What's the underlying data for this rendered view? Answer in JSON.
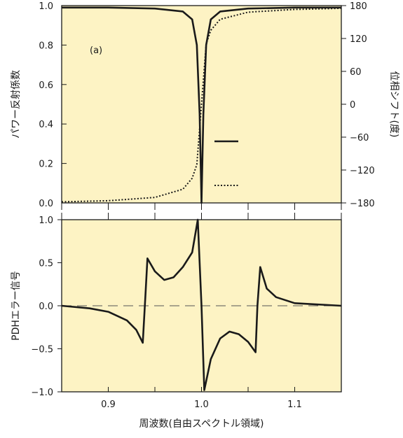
{
  "colors": {
    "panel_bg": "#fdf3c4",
    "line": "#1a1a1a",
    "zero_line": "#555555"
  },
  "chart_data": [
    {
      "type": "line",
      "panel": "top",
      "annotation": "(a)",
      "ylabel": "パワー反射係数",
      "ylabel_right": "位相シフト(度)",
      "xlim": [
        0.85,
        1.15
      ],
      "ylim": [
        0,
        1.0
      ],
      "ylim_right": [
        -180,
        180
      ],
      "yticks": [
        0.0,
        0.2,
        0.4,
        0.6,
        0.8,
        1.0
      ],
      "ytick_labels": [
        "0.0",
        "0.2",
        "0.4",
        "0.6",
        "0.8",
        "1.0"
      ],
      "yticks_right": [
        -180,
        -120,
        -60,
        0,
        60,
        120,
        180
      ],
      "ytick_labels_right": [
        "−180",
        "−120",
        "−60",
        "0",
        "60",
        "120",
        "180"
      ],
      "legend": [
        {
          "style": "solid",
          "label": ""
        },
        {
          "style": "dotted",
          "label": ""
        }
      ],
      "series": [
        {
          "style": "solid",
          "axis": "left",
          "x": [
            0.85,
            0.9,
            0.95,
            0.98,
            0.99,
            0.995,
            0.998,
            1.0,
            1.002,
            1.005,
            1.01,
            1.02,
            1.05,
            1.1,
            1.15
          ],
          "values": [
            0.99,
            0.99,
            0.985,
            0.97,
            0.93,
            0.8,
            0.45,
            0.0,
            0.45,
            0.8,
            0.93,
            0.97,
            0.985,
            0.99,
            0.99
          ]
        },
        {
          "style": "dotted",
          "axis": "right",
          "x": [
            0.85,
            0.9,
            0.95,
            0.98,
            0.99,
            0.995,
            1.0,
            1.005,
            1.01,
            1.02,
            1.05,
            1.1,
            1.15
          ],
          "values": [
            -178,
            -176,
            -170,
            -155,
            -135,
            -110,
            0,
            110,
            135,
            155,
            168,
            173,
            175
          ]
        }
      ]
    },
    {
      "type": "line",
      "panel": "bottom",
      "xlabel": "周波数(自由スペクトル領域)",
      "ylabel": "PDHエラー信号",
      "xlim": [
        0.85,
        1.15
      ],
      "ylim": [
        -1.0,
        1.0
      ],
      "xticks": [
        0.9,
        1.0,
        1.1
      ],
      "xtick_labels": [
        "0.9",
        "1.0",
        "1.1"
      ],
      "yticks": [
        -1.0,
        -0.5,
        0.0,
        0.5,
        1.0
      ],
      "ytick_labels": [
        "−1.0",
        "−0.5",
        "0.0",
        "0.5",
        "1.0"
      ],
      "zero_line": "dashed",
      "series": [
        {
          "style": "solid",
          "x": [
            0.85,
            0.88,
            0.9,
            0.92,
            0.93,
            0.937,
            0.94,
            0.942,
            0.95,
            0.96,
            0.97,
            0.98,
            0.99,
            0.996,
            1.0,
            1.003,
            1.01,
            1.02,
            1.03,
            1.04,
            1.05,
            1.058,
            1.06,
            1.063,
            1.07,
            1.08,
            1.1,
            1.15
          ],
          "values": [
            0.0,
            -0.03,
            -0.07,
            -0.17,
            -0.28,
            -0.43,
            0.15,
            0.55,
            0.4,
            0.3,
            0.33,
            0.45,
            0.62,
            1.0,
            0.0,
            -0.98,
            -0.62,
            -0.38,
            -0.3,
            -0.33,
            -0.42,
            -0.54,
            0.0,
            0.45,
            0.2,
            0.1,
            0.03,
            0.0
          ]
        }
      ]
    }
  ]
}
